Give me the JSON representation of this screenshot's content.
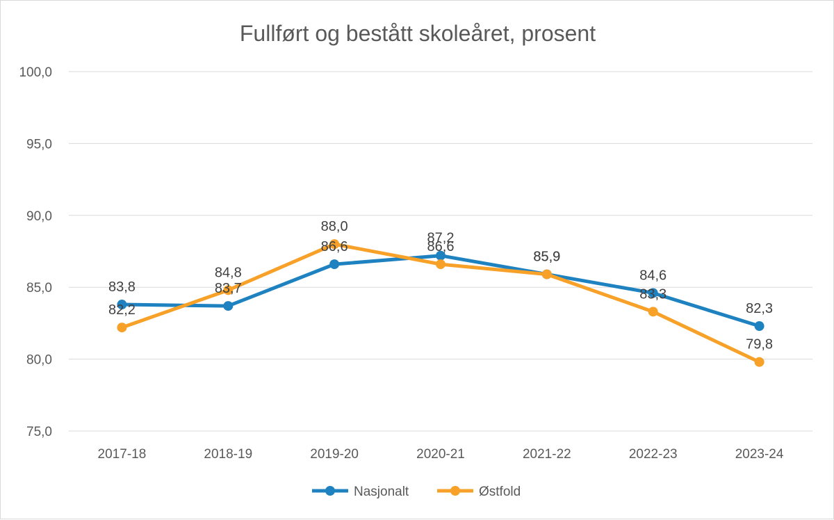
{
  "chart_data": {
    "type": "line",
    "title": "Fullført og bestått skoleåret, prosent",
    "categories": [
      "2017-18",
      "2018-19",
      "2019-20",
      "2020-21",
      "2021-22",
      "2022-23",
      "2023-24"
    ],
    "ylim": [
      75,
      100
    ],
    "yticks": [
      "75,0",
      "80,0",
      "85,0",
      "90,0",
      "95,0",
      "100,0"
    ],
    "grid": true,
    "legend_position": "bottom",
    "series": [
      {
        "name": "Nasjonalt",
        "color": "#1f82c0",
        "values": [
          83.8,
          83.7,
          86.6,
          87.2,
          85.9,
          84.6,
          82.3
        ],
        "labels": [
          "83,8",
          "83,7",
          "86,6",
          "87,2",
          "85,9",
          "84,6",
          "82,3"
        ]
      },
      {
        "name": "Østfold",
        "color": "#f7a128",
        "values": [
          82.2,
          84.8,
          88.0,
          86.6,
          85.9,
          83.3,
          79.8
        ],
        "labels": [
          "82,2",
          "84,8",
          "88,0",
          "86,6",
          "85,9",
          "83,3",
          "79,8"
        ]
      }
    ]
  }
}
